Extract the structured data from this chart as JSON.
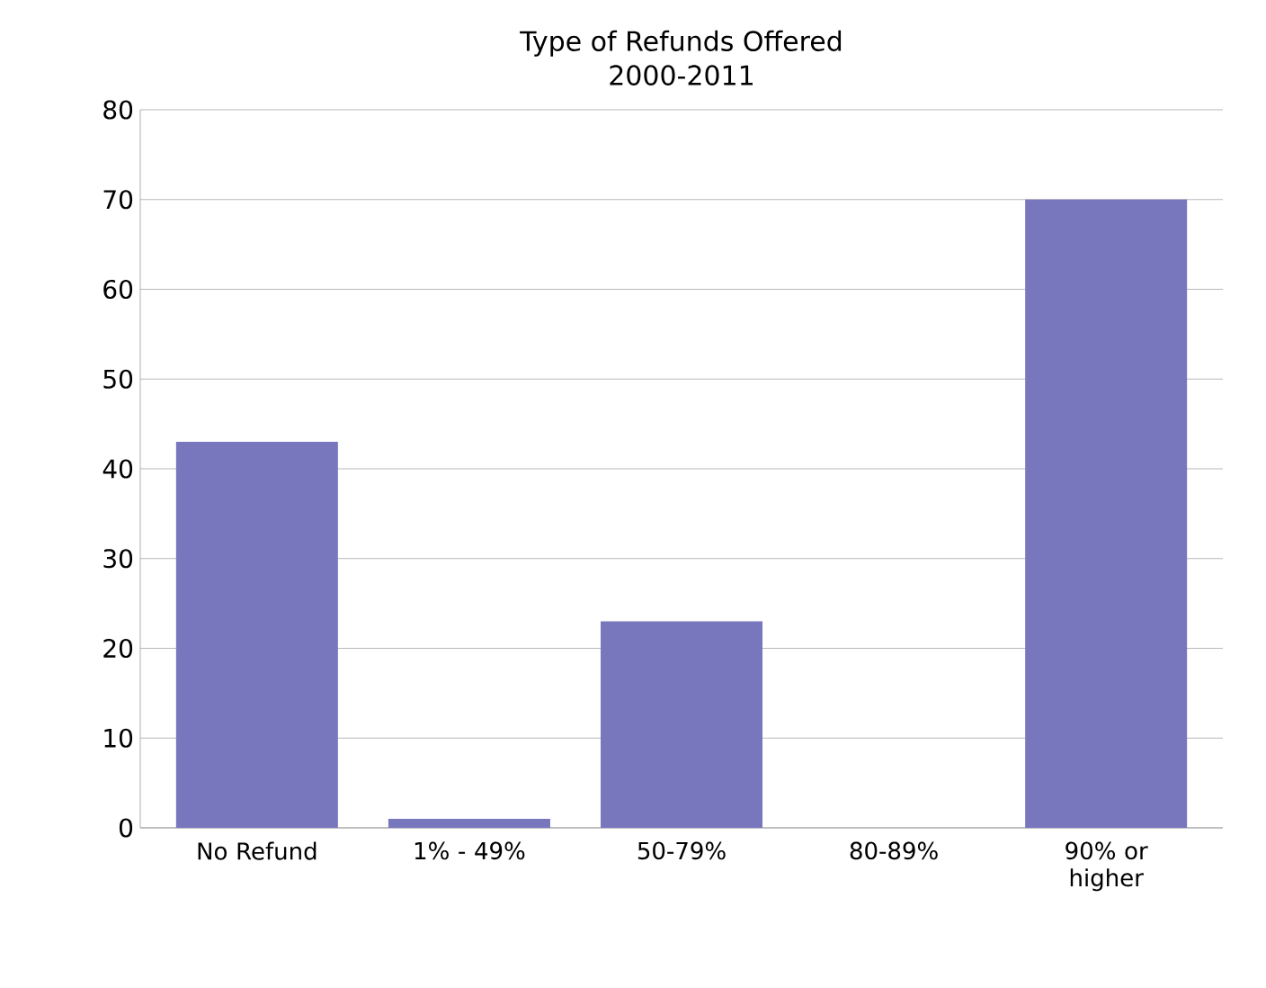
{
  "chart_data": {
    "type": "bar",
    "title": "Type of Refunds Offered",
    "subtitle": "2000-2011",
    "categories": [
      "No Refund",
      "1% - 49%",
      "50-79%",
      "80-89%",
      "90% or higher"
    ],
    "values": [
      43,
      1,
      23,
      0,
      70
    ],
    "color": "#7876bd",
    "ylim": [
      0,
      80
    ],
    "yticks": [
      0,
      10,
      20,
      30,
      40,
      50,
      60,
      70,
      80
    ],
    "grid": "y"
  }
}
